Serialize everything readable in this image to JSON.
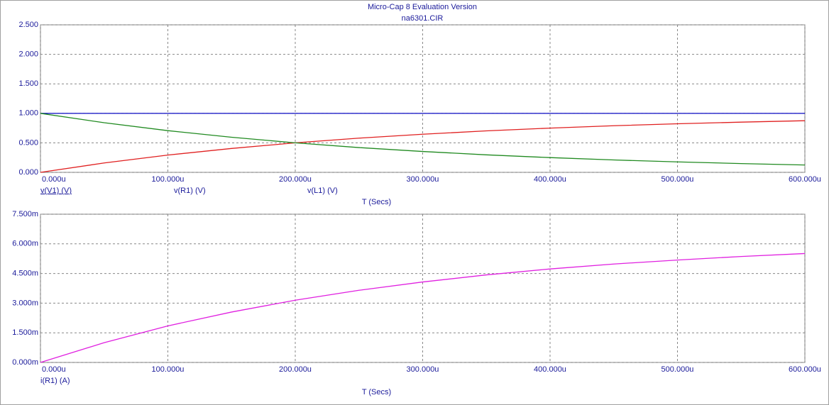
{
  "chart_data": [
    {
      "type": "line",
      "title": "Micro-Cap 8 Evaluation Version",
      "subtitle": "na6301.CIR",
      "x": [
        0,
        5e-05,
        0.0001,
        0.00015,
        0.0002,
        0.00025,
        0.0003,
        0.00035,
        0.0004,
        0.00045,
        0.0005,
        0.00055,
        0.0006
      ],
      "series": [
        {
          "name": "v(V1) (V)",
          "color": "#2020c8",
          "values": [
            1,
            1,
            1,
            1,
            1,
            1,
            1,
            1,
            1,
            1,
            1,
            1,
            1
          ]
        },
        {
          "name": "v(R1) (V)",
          "color": "#e02020",
          "values": [
            0,
            0.159,
            0.293,
            0.405,
            0.5,
            0.58,
            0.646,
            0.703,
            0.75,
            0.79,
            0.823,
            0.851,
            0.875
          ]
        },
        {
          "name": "v(L1) (V)",
          "color": "#208a20",
          "values": [
            1,
            0.841,
            0.707,
            0.595,
            0.5,
            0.42,
            0.354,
            0.297,
            0.25,
            0.21,
            0.177,
            0.149,
            0.125
          ]
        }
      ],
      "xlim": [
        0,
        0.0006
      ],
      "xticks": [
        {
          "value": 0,
          "label": "0.000u"
        },
        {
          "value": 0.0001,
          "label": "100.000u"
        },
        {
          "value": 0.0002,
          "label": "200.000u"
        },
        {
          "value": 0.0003,
          "label": "300.000u"
        },
        {
          "value": 0.0004,
          "label": "400.000u"
        },
        {
          "value": 0.0005,
          "label": "500.000u"
        },
        {
          "value": 0.0006,
          "label": "600.000u"
        }
      ],
      "ylim": [
        0,
        2.5
      ],
      "yticks": [
        {
          "value": 0,
          "label": "0.000"
        },
        {
          "value": 0.5,
          "label": "0.500"
        },
        {
          "value": 1,
          "label": "1.000"
        },
        {
          "value": 1.5,
          "label": "1.500"
        },
        {
          "value": 2,
          "label": "2.000"
        },
        {
          "value": 2.5,
          "label": "2.500"
        }
      ],
      "xlabel": "T (Secs)",
      "grid": true
    },
    {
      "type": "line",
      "x": [
        0,
        5e-05,
        0.0001,
        0.00015,
        0.0002,
        0.00025,
        0.0003,
        0.00035,
        0.0004,
        0.00045,
        0.0005,
        0.00055,
        0.0006
      ],
      "series": [
        {
          "name": "i(R1) (A)",
          "color": "#e020e0",
          "values": [
            0,
            0.001,
            0.00185,
            0.00255,
            0.00315,
            0.00365,
            0.00407,
            0.00443,
            0.00473,
            0.00498,
            0.00518,
            0.00536,
            0.00551
          ]
        }
      ],
      "xlim": [
        0,
        0.0006
      ],
      "xticks": [
        {
          "value": 0,
          "label": "0.000u"
        },
        {
          "value": 0.0001,
          "label": "100.000u"
        },
        {
          "value": 0.0002,
          "label": "200.000u"
        },
        {
          "value": 0.0003,
          "label": "300.000u"
        },
        {
          "value": 0.0004,
          "label": "400.000u"
        },
        {
          "value": 0.0005,
          "label": "500.000u"
        },
        {
          "value": 0.0006,
          "label": "600.000u"
        }
      ],
      "ylim": [
        0,
        0.0075
      ],
      "yticks": [
        {
          "value": 0,
          "label": "0.000m"
        },
        {
          "value": 0.0015,
          "label": "1.500m"
        },
        {
          "value": 0.003,
          "label": "3.000m"
        },
        {
          "value": 0.0045,
          "label": "4.500m"
        },
        {
          "value": 0.006,
          "label": "6.000m"
        },
        {
          "value": 0.0075,
          "label": "7.500m"
        }
      ],
      "xlabel": "T (Secs)",
      "grid": true
    }
  ]
}
